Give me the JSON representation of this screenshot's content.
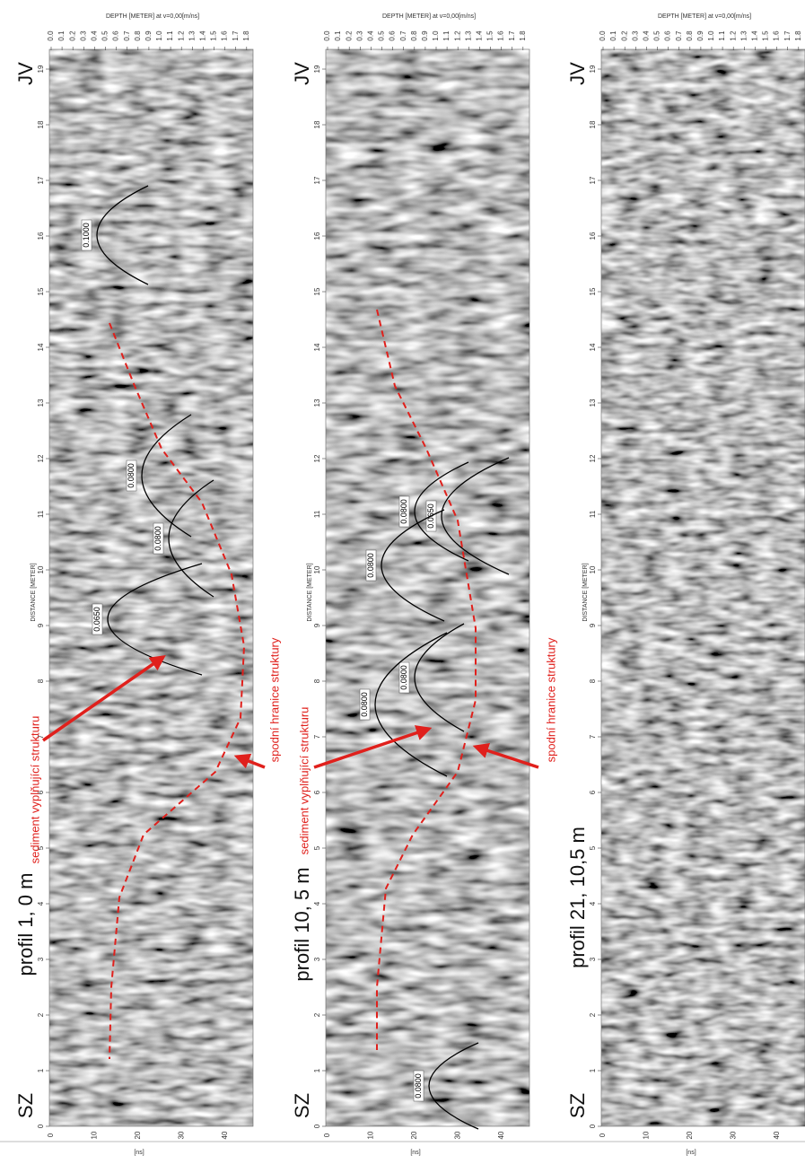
{
  "axes": {
    "depth_title": "DEPTH [METER] at v=0,00[m/ns]",
    "distance_title": "DISTANCE [METER]",
    "time_title": "[ns]",
    "depth_ticks": [
      "0.0",
      "0.1",
      "0.2",
      "0.3",
      "0.4",
      "0.5",
      "0.6",
      "0.7",
      "0.8",
      "0.9",
      "1.0",
      "1.1",
      "1.2",
      "1.3",
      "1.4",
      "1.5",
      "1.6",
      "1.7",
      "1.8"
    ],
    "distance_ticks": [
      "0",
      "1",
      "2",
      "3",
      "4",
      "5",
      "6",
      "7",
      "8",
      "9",
      "10",
      "11",
      "12",
      "13",
      "14",
      "15",
      "16",
      "17",
      "18",
      "19"
    ],
    "time_ticks": [
      "0",
      "10",
      "20",
      "30",
      "40"
    ]
  },
  "panels": [
    {
      "label": "profil 1, 0 m",
      "start": "SZ",
      "end": "JV",
      "hyperbolas": [
        "0.1000",
        "0.0800",
        "0.0800",
        "0.0650"
      ],
      "annotations": [
        "sediment vyplňující strukturu",
        "spodní hranice struktury"
      ]
    },
    {
      "label": "profil 10, 5 m",
      "start": "SZ",
      "end": "JV",
      "hyperbolas": [
        "0.0800",
        "0.0650",
        "0.0800",
        "0.0800",
        "0.0800",
        "0.0800"
      ],
      "annotations": [
        "sediment vyplňující strukturu",
        "spodní hranice struktury"
      ]
    },
    {
      "label": "profil 21, 10,5 m",
      "start": "SZ",
      "end": "JV",
      "hyperbolas": [],
      "annotations": []
    }
  ]
}
